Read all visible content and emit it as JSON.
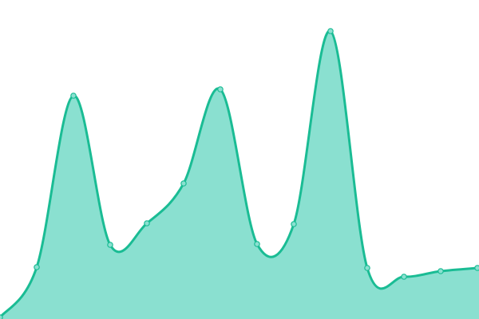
{
  "chart_data": {
    "type": "area",
    "title": "",
    "xlabel": "",
    "ylabel": "",
    "x": [
      0,
      1,
      2,
      3,
      4,
      5,
      6,
      7,
      8,
      9,
      10,
      11,
      12,
      13
    ],
    "values": [
      2,
      65,
      280,
      93,
      120,
      170,
      288,
      94,
      119,
      361,
      64,
      53,
      60,
      64
    ],
    "ylim": [
      0,
      400
    ],
    "grid": false,
    "legend": "none",
    "colors": {
      "line": "#1abc94",
      "fill": "#8ae0d0",
      "point_fill": "#8ae0d0",
      "point_stroke": "#1abc94"
    }
  }
}
